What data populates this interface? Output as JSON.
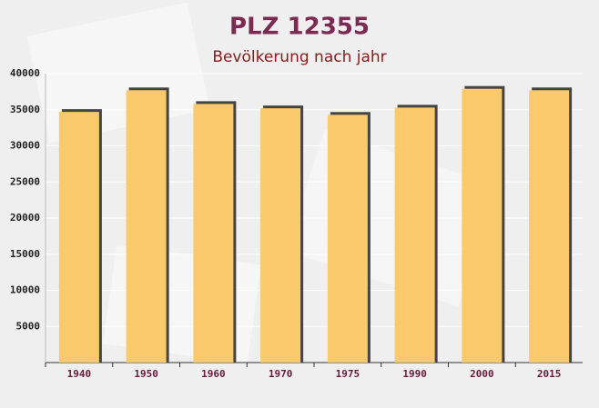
{
  "chart_data": {
    "type": "bar",
    "title": "PLZ 12355",
    "subtitle": "Bevölkerung nach jahr",
    "categories": [
      "1940",
      "1950",
      "1960",
      "1970",
      "1975",
      "1990",
      "2000",
      "2015"
    ],
    "values": [
      34700,
      37700,
      35800,
      35200,
      34300,
      35300,
      37900,
      37700
    ],
    "color": "#f9c96b",
    "ylim": [
      0,
      40000
    ],
    "yticks": [
      5000,
      10000,
      15000,
      20000,
      25000,
      30000,
      35000,
      40000
    ],
    "grid": true
  }
}
